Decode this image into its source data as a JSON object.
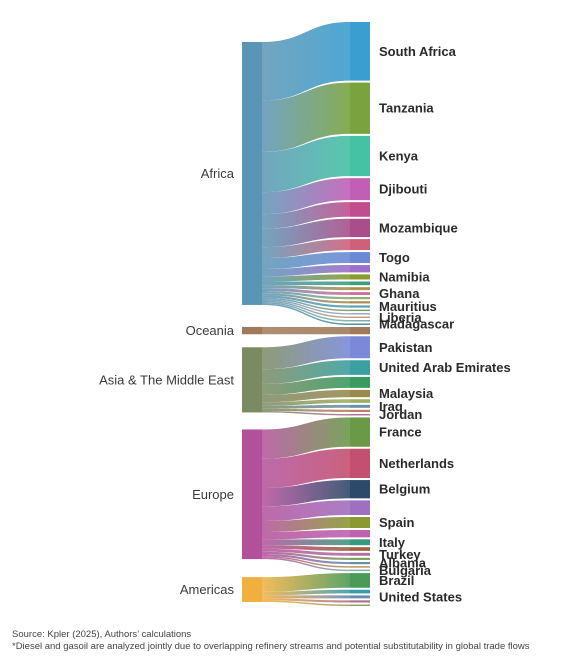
{
  "chart_data": {
    "type": "sankey",
    "title": "",
    "sources": [
      {
        "name": "Africa",
        "color": "#5b95b5"
      },
      {
        "name": "Oceania",
        "color": "#a07a5a"
      },
      {
        "name": "Asia & The Middle East",
        "color": "#7a8a62"
      },
      {
        "name": "Europe",
        "color": "#b2509a"
      },
      {
        "name": "Americas",
        "color": "#f0b040"
      }
    ],
    "targets": [
      {
        "source": "Africa",
        "name": "South Africa",
        "value": 8,
        "color": "#3a9ed0"
      },
      {
        "source": "Africa",
        "name": "Tanzania",
        "value": 7,
        "color": "#79a33e"
      },
      {
        "source": "Africa",
        "name": "Kenya",
        "value": 5.5,
        "color": "#45c2a4"
      },
      {
        "source": "Africa",
        "name": "Djibouti",
        "value": 3,
        "color": "#c15fb7"
      },
      {
        "source": "Africa",
        "name": "",
        "value": 2,
        "color": "#c14d8e"
      },
      {
        "source": "Africa",
        "name": "Mozambique",
        "value": 2.5,
        "color": "#a94e8a"
      },
      {
        "source": "Africa",
        "name": "",
        "value": 1.5,
        "color": "#d0607a"
      },
      {
        "source": "Africa",
        "name": "Togo",
        "value": 1.5,
        "color": "#6a8ad8"
      },
      {
        "source": "Africa",
        "name": "",
        "value": 1,
        "color": "#9a70c8"
      },
      {
        "source": "Africa",
        "name": "Namibia",
        "value": 0.7,
        "color": "#8a9a30"
      },
      {
        "source": "Africa",
        "name": "",
        "value": 0.5,
        "color": "#3a9e80"
      },
      {
        "source": "Africa",
        "name": "",
        "value": 0.4,
        "color": "#b09050"
      },
      {
        "source": "Africa",
        "name": "Ghana",
        "value": 0.4,
        "color": "#d070a0"
      },
      {
        "source": "Africa",
        "name": "",
        "value": 0.3,
        "color": "#8ab070"
      },
      {
        "source": "Africa",
        "name": "",
        "value": 0.3,
        "color": "#b08a50"
      },
      {
        "source": "Africa",
        "name": "Mauritius",
        "value": 0.3,
        "color": "#5aa0b0"
      },
      {
        "source": "Africa",
        "name": "",
        "value": 0.2,
        "color": "#7aa060"
      },
      {
        "source": "Africa",
        "name": "",
        "value": 0.2,
        "color": "#a0a0c0"
      },
      {
        "source": "Africa",
        "name": "Liberia",
        "value": 0.2,
        "color": "#c0a070"
      },
      {
        "source": "Africa",
        "name": "",
        "value": 0.2,
        "color": "#80b0a0"
      },
      {
        "source": "Africa",
        "name": "Madagascar",
        "value": 0.2,
        "color": "#4a8aa0"
      },
      {
        "source": "Oceania",
        "name": "",
        "value": 1,
        "color": "#a07a5a"
      },
      {
        "source": "Asia & The Middle East",
        "name": "Pakistan",
        "value": 3,
        "color": "#7a8ad8"
      },
      {
        "source": "Asia & The Middle East",
        "name": "United Arab Emirates",
        "value": 2,
        "color": "#3aa0a0"
      },
      {
        "source": "Asia & The Middle East",
        "name": "",
        "value": 1.5,
        "color": "#3a9a60"
      },
      {
        "source": "Asia & The Middle East",
        "name": "Malaysia",
        "value": 1,
        "color": "#9a8a50"
      },
      {
        "source": "Asia & The Middle East",
        "name": "",
        "value": 0.5,
        "color": "#a0b060"
      },
      {
        "source": "Asia & The Middle East",
        "name": "Iraq",
        "value": 0.4,
        "color": "#6a90b0"
      },
      {
        "source": "Asia & The Middle East",
        "name": "",
        "value": 0.3,
        "color": "#c08060"
      },
      {
        "source": "Asia & The Middle East",
        "name": "Jordan",
        "value": 0.2,
        "color": "#b070a0"
      },
      {
        "source": "Europe",
        "name": "France",
        "value": 4,
        "color": "#6a9a48"
      },
      {
        "source": "Europe",
        "name": "Netherlands",
        "value": 4,
        "color": "#c45070"
      },
      {
        "source": "Europe",
        "name": "Belgium",
        "value": 2.5,
        "color": "#2e4a6a"
      },
      {
        "source": "Europe",
        "name": "",
        "value": 2,
        "color": "#a070c0"
      },
      {
        "source": "Europe",
        "name": "Spain",
        "value": 1.5,
        "color": "#8a9a30"
      },
      {
        "source": "Europe",
        "name": "",
        "value": 1,
        "color": "#c060b0"
      },
      {
        "source": "Europe",
        "name": "Italy",
        "value": 0.8,
        "color": "#3a9a80"
      },
      {
        "source": "Europe",
        "name": "",
        "value": 0.5,
        "color": "#a06040"
      },
      {
        "source": "Europe",
        "name": "Turkey",
        "value": 0.4,
        "color": "#b070a0"
      },
      {
        "source": "Europe",
        "name": "",
        "value": 0.3,
        "color": "#80a060"
      },
      {
        "source": "Europe",
        "name": "Albania",
        "value": 0.3,
        "color": "#6090b0"
      },
      {
        "source": "Europe",
        "name": "",
        "value": 0.2,
        "color": "#c09050"
      },
      {
        "source": "Europe",
        "name": "Bulgaria",
        "value": 0.2,
        "color": "#80b0a0"
      },
      {
        "source": "Americas",
        "name": "Brazil",
        "value": 2,
        "color": "#4a9a58"
      },
      {
        "source": "Americas",
        "name": "",
        "value": 0.5,
        "color": "#3a9ab0"
      },
      {
        "source": "Americas",
        "name": "United States",
        "value": 0.4,
        "color": "#6a8ab0"
      },
      {
        "source": "Americas",
        "name": "",
        "value": 0.3,
        "color": "#b07090"
      },
      {
        "source": "Americas",
        "name": "",
        "value": 0.2,
        "color": "#90a060"
      }
    ]
  },
  "footer": {
    "source": "Source: Kpler (2025), Authors’ calculations",
    "footnote": "*Diesel and gasoil are analyzed jointly due to overlapping refinery streams and potential substitutability in global trade flows"
  }
}
